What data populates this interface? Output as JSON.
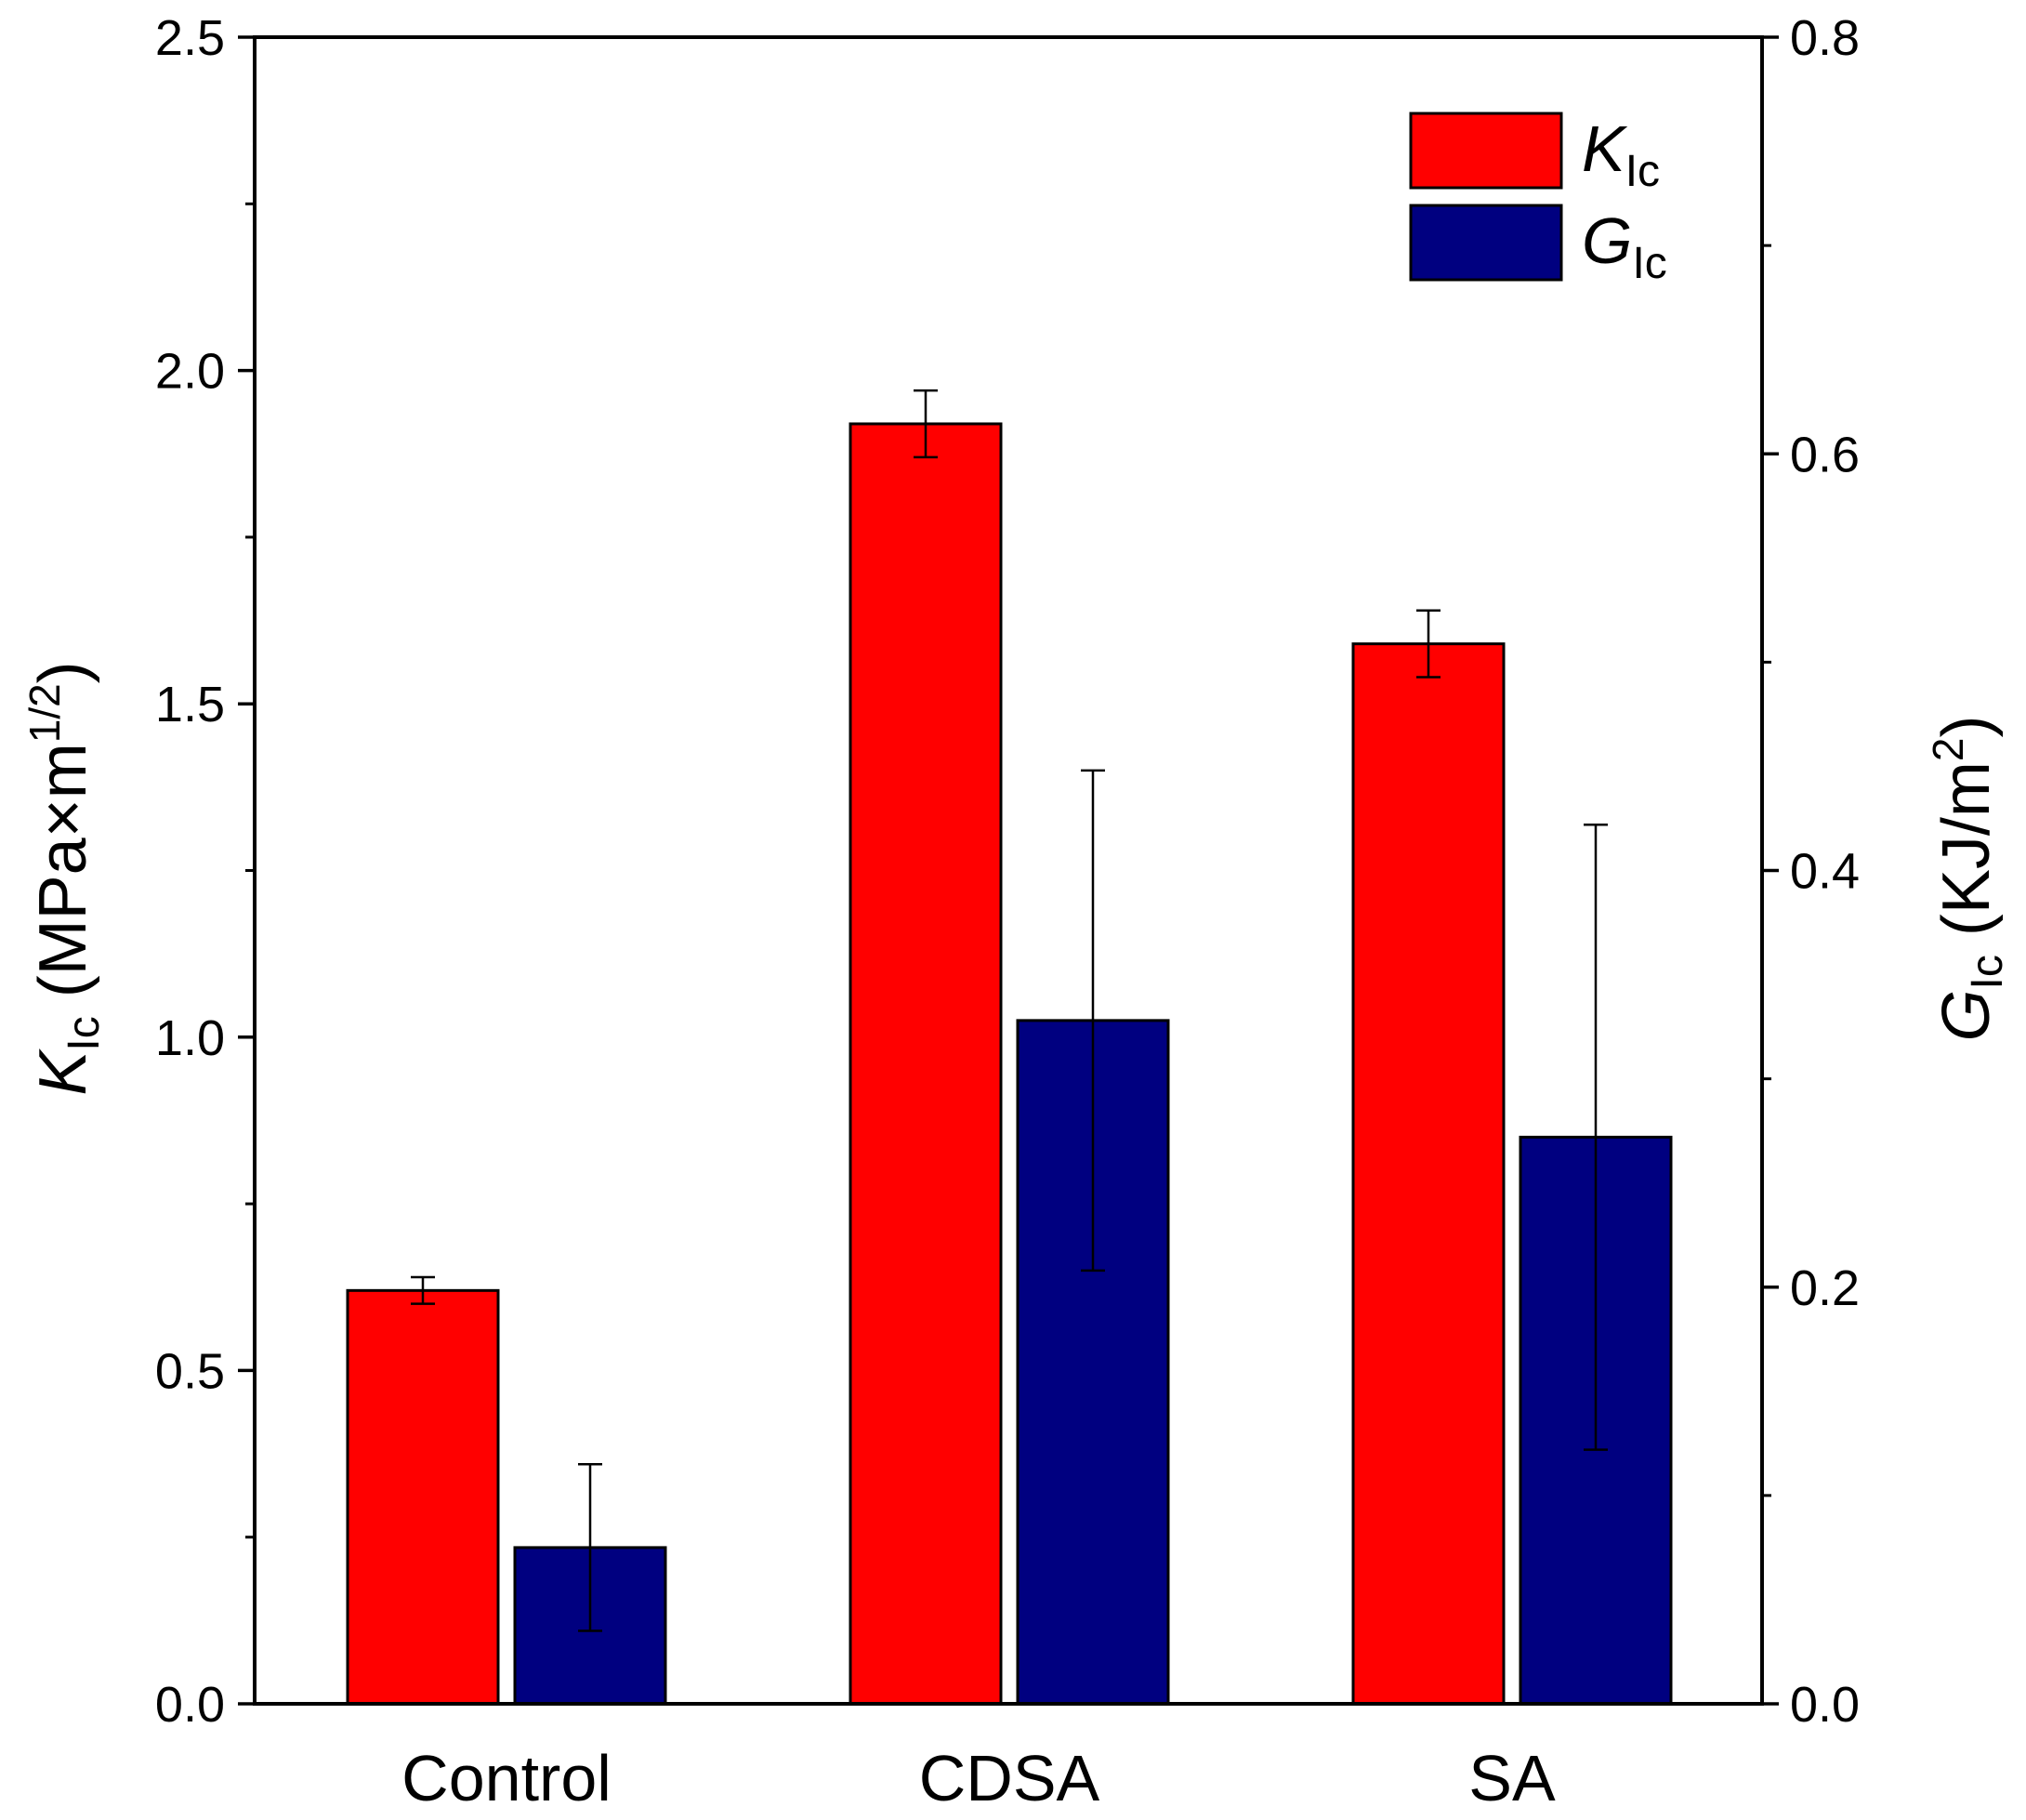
{
  "chart_data": {
    "type": "bar",
    "categories": [
      "Control",
      "CDSA",
      "SA"
    ],
    "series": [
      {
        "name": "K_Ic",
        "legend_main": "K",
        "legend_sub": "Ic",
        "axis": "left",
        "color": "#ff0000",
        "values": [
          0.62,
          1.92,
          1.59
        ],
        "errors": [
          0.02,
          0.05,
          0.05
        ]
      },
      {
        "name": "G_Ic",
        "legend_main": "G",
        "legend_sub": "Ic",
        "axis": "right",
        "color": "#000080",
        "values": [
          0.075,
          0.328,
          0.272
        ],
        "errors": [
          0.04,
          0.12,
          0.15
        ]
      }
    ],
    "left_axis": {
      "label_main": "K",
      "label_sub": "Ic",
      "label_unit_prefix": " (MPa×m",
      "label_unit_sup": "1/2",
      "label_unit_suffix": ")",
      "range": [
        0,
        2.5
      ],
      "major_ticks": [
        "0.0",
        "0.5",
        "1.0",
        "1.5",
        "2.0",
        "2.5"
      ]
    },
    "right_axis": {
      "label_main": "G",
      "label_sub": "Ic",
      "label_unit_prefix": " (KJ/m",
      "label_unit_sup": "2",
      "label_unit_suffix": ")",
      "range": [
        0,
        0.8
      ],
      "major_ticks": [
        "0.0",
        "0.2",
        "0.4",
        "0.6",
        "0.8"
      ]
    },
    "legend_position": "top-right",
    "grid": false
  }
}
